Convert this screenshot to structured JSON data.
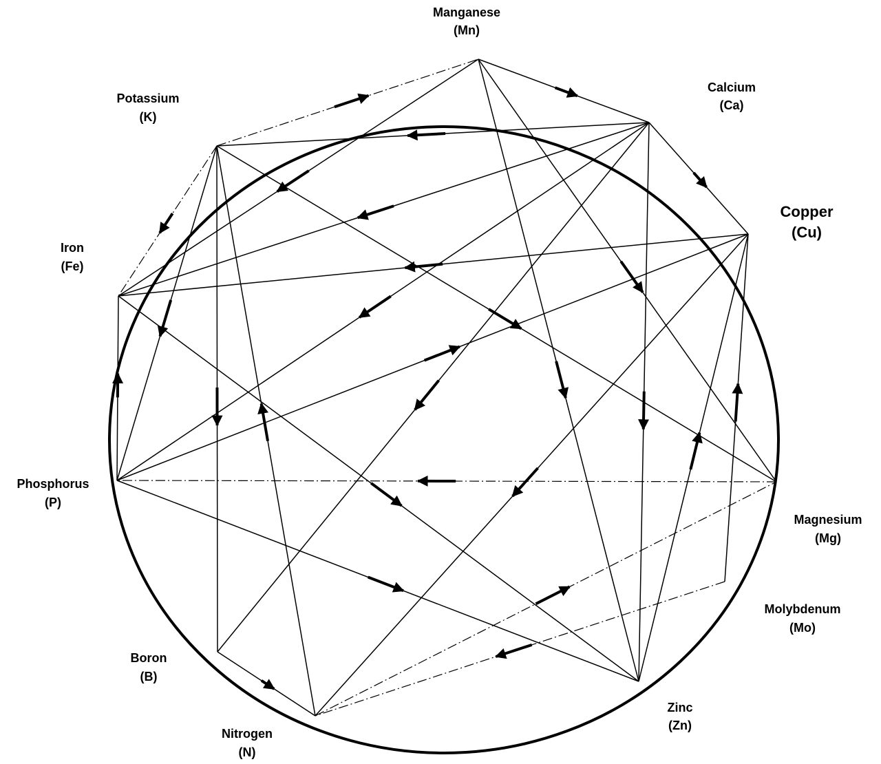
{
  "nodes": [
    {
      "id": "Mn",
      "name": "Manganese",
      "symbol": "(Mn)"
    },
    {
      "id": "Ca",
      "name": "Calcium",
      "symbol": "(Ca)"
    },
    {
      "id": "Cu",
      "name": "Copper",
      "symbol": "(Cu)"
    },
    {
      "id": "Mg",
      "name": "Magnesium",
      "symbol": "(Mg)"
    },
    {
      "id": "Mo",
      "name": "Molybdenum",
      "symbol": "(Mo)"
    },
    {
      "id": "Zn",
      "name": "Zinc",
      "symbol": "(Zn)"
    },
    {
      "id": "N",
      "name": "Nitrogen",
      "symbol": "(N)"
    },
    {
      "id": "B",
      "name": "Boron",
      "symbol": "(B)"
    },
    {
      "id": "P",
      "name": "Phosphorus",
      "symbol": "(P)"
    },
    {
      "id": "Fe",
      "name": "Iron",
      "symbol": "(Fe)"
    },
    {
      "id": "K",
      "name": "Potassium",
      "symbol": "(K)"
    }
  ],
  "edges": [
    {
      "from": "Mn",
      "to": "Fe",
      "style": "solid"
    },
    {
      "from": "Mn",
      "to": "Zn",
      "style": "solid"
    },
    {
      "from": "Mn",
      "to": "Mg",
      "style": "solid"
    },
    {
      "from": "Mn",
      "to": "Ca",
      "style": "solid"
    },
    {
      "from": "K",
      "to": "Mn",
      "style": "dashdot"
    },
    {
      "from": "Ca",
      "to": "K",
      "style": "solid"
    },
    {
      "from": "Ca",
      "to": "Fe",
      "style": "solid"
    },
    {
      "from": "Ca",
      "to": "P",
      "style": "solid"
    },
    {
      "from": "Ca",
      "to": "B",
      "style": "solid"
    },
    {
      "from": "Ca",
      "to": "Zn",
      "style": "solid"
    },
    {
      "from": "Ca",
      "to": "Cu",
      "style": "solid"
    },
    {
      "from": "Cu",
      "to": "Fe",
      "style": "solid"
    },
    {
      "from": "P",
      "to": "Cu",
      "style": "solid"
    },
    {
      "from": "Cu",
      "to": "N",
      "style": "solid"
    },
    {
      "from": "Zn",
      "to": "Cu",
      "style": "solid"
    },
    {
      "from": "Mo",
      "to": "Cu",
      "style": "solid"
    },
    {
      "from": "K",
      "to": "Fe",
      "style": "dashdot"
    },
    {
      "from": "K",
      "to": "B",
      "style": "solid"
    },
    {
      "from": "N",
      "to": "K",
      "style": "solid"
    },
    {
      "from": "K",
      "to": "Mg",
      "style": "solid"
    },
    {
      "from": "K",
      "to": "P",
      "style": "solid"
    },
    {
      "from": "P",
      "to": "Fe",
      "style": "solid"
    },
    {
      "from": "Fe",
      "to": "Zn",
      "style": "solid"
    },
    {
      "from": "Mg",
      "to": "P",
      "style": "dashdot"
    },
    {
      "from": "P",
      "to": "Zn",
      "style": "solid"
    },
    {
      "from": "N",
      "to": "Mg",
      "style": "dashdot"
    },
    {
      "from": "Mo",
      "to": "N",
      "style": "dashdot"
    },
    {
      "from": "B",
      "to": "N",
      "style": "solid"
    }
  ],
  "colors": {
    "stroke": "#000000",
    "background": "#ffffff"
  }
}
